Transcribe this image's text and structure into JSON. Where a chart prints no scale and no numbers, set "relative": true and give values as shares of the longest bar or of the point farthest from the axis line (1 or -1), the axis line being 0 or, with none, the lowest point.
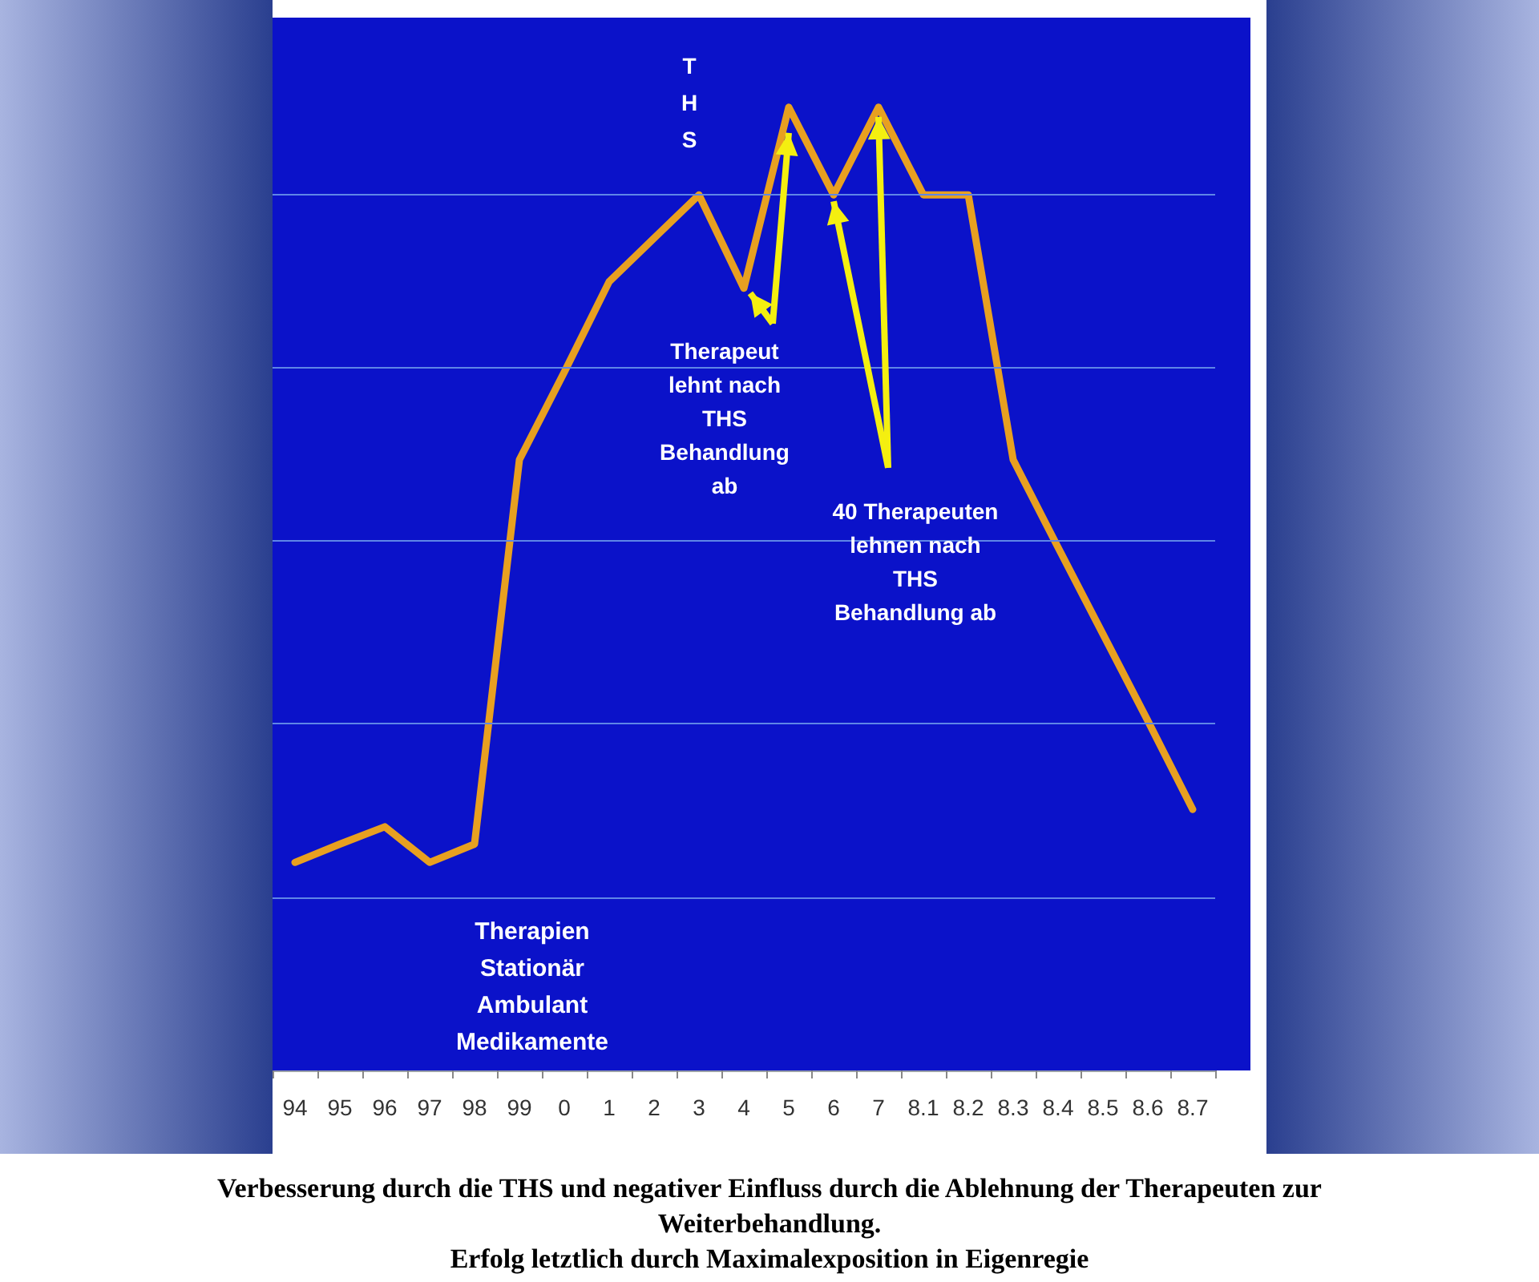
{
  "chart_data": {
    "type": "line",
    "relative": true,
    "marker": "none",
    "ref_lines": [
      {
        "axis": "y",
        "value": 0.181,
        "color": "#5f86e6"
      },
      {
        "axis": "y",
        "value": 0.363,
        "color": "#5f86e6"
      },
      {
        "axis": "y",
        "value": 0.546,
        "color": "#5f86e6"
      },
      {
        "axis": "y",
        "value": 0.727,
        "color": "#5f86e6"
      },
      {
        "axis": "y",
        "value": 0.908,
        "color": "#5f86e6"
      }
    ],
    "line_style": "solid",
    "categories": [
      "94",
      "95",
      "96",
      "97",
      "98",
      "99",
      "0",
      "1",
      "2",
      "3",
      "4",
      "5",
      "6",
      "7",
      "8.1",
      "8.2",
      "8.3",
      "8.4",
      "8.5",
      "8.6",
      "8.7"
    ],
    "series": [
      {
        "color": "#e8a020",
        "values": [
          0.216,
          0.235,
          0.253,
          0.216,
          0.235,
          0.634,
          0.725,
          0.819,
          0.864,
          0.909,
          0.812,
          1,
          0.909,
          1,
          0.909,
          0.909,
          0.634,
          0.543,
          0.453,
          0.363,
          0.271
        ]
      }
    ],
    "annotations": [
      "THS",
      "Therapeut lehnt nach THS Behandlung ab",
      "40 Therapeuten lehnen nach THS Behandlung ab",
      "Therapien Stationär Ambulant Medikamente",
      "Verbesserung durch die THS und negativer Einfluss durch die Ablehnung der Therapeuten zur Weiterbehandlung.",
      "Erfolg letztlich durch Maximalexposition in Eigenregie"
    ]
  }
}
